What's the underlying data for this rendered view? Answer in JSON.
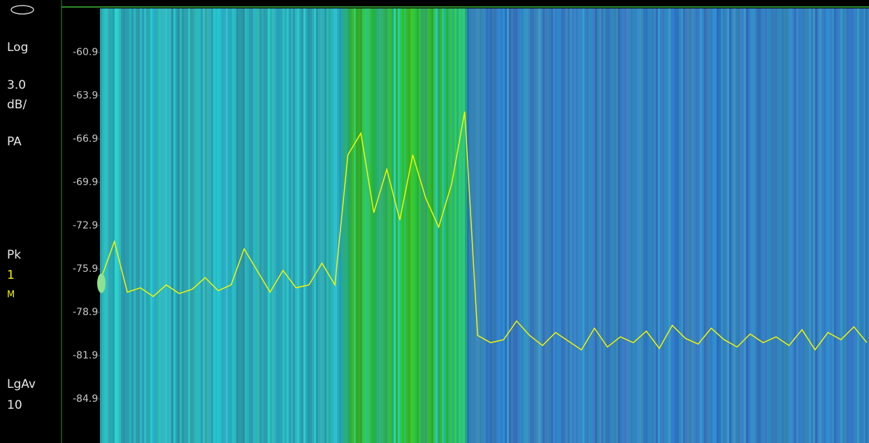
{
  "sidebar": {
    "scale_type": "Log",
    "scale_value": "3.0",
    "scale_unit": "dB/",
    "preamp": "PA",
    "detector": "Pk",
    "trace_number": "1",
    "trace_mode": "M",
    "average_type": "LgAv",
    "average_count": "10"
  },
  "chart_data": {
    "type": "line",
    "categories": [
      null,
      null,
      null,
      null,
      null,
      null,
      null,
      null,
      null,
      null,
      null,
      null,
      null,
      null,
      null,
      null,
      null,
      null,
      null,
      null,
      null,
      null,
      null,
      null,
      null,
      null,
      null,
      null,
      null,
      null,
      null,
      null,
      null,
      null,
      null,
      null,
      null,
      null,
      null,
      null,
      null,
      null,
      null,
      null,
      null,
      null,
      null,
      null,
      null,
      null,
      null,
      null,
      null,
      null,
      null,
      null,
      null,
      null,
      null,
      null
    ],
    "series": [
      {
        "color": "#f5f500",
        "values": [
          -76.5,
          -74,
          -77.5,
          -77.2,
          -77.8,
          -77,
          -77.6,
          -77.3,
          -76.5,
          -77.4,
          -77,
          -74.5,
          -76,
          -77.5,
          -76,
          -77.2,
          -77,
          -75.5,
          -77,
          -68,
          -66.5,
          -72,
          -69,
          -72.5,
          -68,
          -71,
          -73,
          -70,
          -65,
          -80.5,
          -81,
          -80.8,
          -79.5,
          -80.5,
          -81.2,
          -80.3,
          -80.9,
          -81.5,
          -80,
          -81.3,
          -80.6,
          -81,
          -80.2,
          -81.4,
          -79.8,
          -80.7,
          -81.1,
          -80,
          -80.8,
          -81.3,
          -80.4,
          -81,
          -80.6,
          -81.2,
          -80.1,
          -81.5,
          -80.3,
          -80.8,
          -79.9,
          -81
        ]
      }
    ],
    "ylim": [
      -87.95,
      -57.85
    ],
    "yticks": [
      -60.9,
      -63.9,
      -66.9,
      -69.9,
      -72.9,
      -75.9,
      -78.9,
      -81.9,
      -84.9
    ]
  }
}
